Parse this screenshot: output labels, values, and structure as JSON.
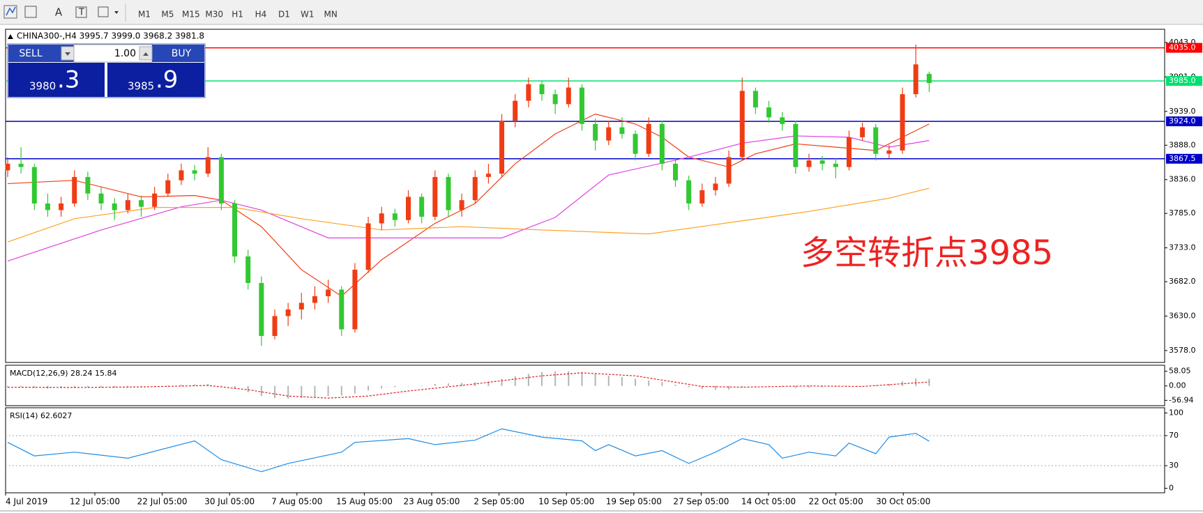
{
  "toolbar": {
    "tools": [
      "A",
      "T"
    ],
    "timeframes": [
      "M1",
      "M5",
      "M15",
      "M30",
      "H1",
      "H4",
      "D1",
      "W1",
      "MN"
    ]
  },
  "trade_panel": {
    "sell": "SELL",
    "lot": "1.00",
    "buy": "BUY",
    "bid_small": "3980",
    "bid_big": ".3",
    "ask_small": "3985",
    "ask_big": ".9"
  },
  "chart_data": [
    {
      "type": "candlestick",
      "title": "CHINA300-,H4 3995.7 3999.0 3968.2 3981.8",
      "up_color": "#f03c14",
      "down_color": "#32c832",
      "ylim": [
        3560,
        4063
      ],
      "yticks": [
        {
          "value": 4043,
          "label": "4043.0"
        },
        {
          "value": 3991,
          "label": "3991.0"
        },
        {
          "value": 3939,
          "label": "3939.0"
        },
        {
          "value": 3888,
          "label": "3888.0"
        },
        {
          "value": 3836,
          "label": "3836.0"
        },
        {
          "value": 3785,
          "label": "3785.0"
        },
        {
          "value": 3733,
          "label": "3733.0"
        },
        {
          "value": 3682,
          "label": "3682.0"
        },
        {
          "value": 3630,
          "label": "3630.0"
        },
        {
          "value": 3578,
          "label": "3578.0"
        }
      ],
      "levels": [
        {
          "value": 4035,
          "label": "4035.0",
          "color": "#ff0000"
        },
        {
          "value": 3985,
          "label": "3985.0",
          "color": "#00e070"
        },
        {
          "value": 3924,
          "label": "3924.0",
          "color": "#0000cc"
        },
        {
          "value": 3867.5,
          "label": "3867.5",
          "color": "#0000cc"
        }
      ],
      "open": [
        3850,
        3860,
        3855,
        3800,
        3790,
        3800,
        3840,
        3815,
        3800,
        3790,
        3805,
        3795,
        3815,
        3835,
        3850,
        3845,
        3870,
        3800,
        3720,
        3680,
        3600,
        3630,
        3640,
        3650,
        3660,
        3670,
        3610,
        3700,
        3770,
        3785,
        3775,
        3810,
        3780,
        3840,
        3790,
        3805,
        3840,
        3845,
        3925,
        3955,
        3980,
        3965,
        3950,
        3975,
        3920,
        3895,
        3915,
        3905,
        3875,
        3920,
        3860,
        3835,
        3800,
        3820,
        3830,
        3870,
        3970,
        3945,
        3930,
        3920,
        3855,
        3865,
        3860,
        3855,
        3900,
        3915,
        3875,
        3880,
        3965,
        3995.7
      ],
      "high": [
        3870,
        3885,
        3860,
        3815,
        3810,
        3850,
        3848,
        3825,
        3808,
        3815,
        3812,
        3825,
        3845,
        3860,
        3858,
        3885,
        3875,
        3805,
        3730,
        3690,
        3640,
        3650,
        3665,
        3675,
        3685,
        3675,
        3710,
        3780,
        3795,
        3792,
        3820,
        3815,
        3850,
        3845,
        3815,
        3850,
        3860,
        3935,
        3965,
        3990,
        3985,
        3972,
        3990,
        3980,
        3928,
        3925,
        3930,
        3910,
        3930,
        3925,
        3868,
        3842,
        3830,
        3840,
        3880,
        3990,
        3975,
        3955,
        3938,
        3925,
        3875,
        3872,
        3868,
        3910,
        3922,
        3920,
        3888,
        3975,
        4040,
        3999.0
      ],
      "low": [
        3840,
        3845,
        3790,
        3780,
        3780,
        3795,
        3805,
        3790,
        3775,
        3785,
        3780,
        3790,
        3810,
        3828,
        3835,
        3840,
        3790,
        3710,
        3670,
        3585,
        3595,
        3615,
        3625,
        3640,
        3650,
        3600,
        3605,
        3695,
        3760,
        3765,
        3770,
        3770,
        3775,
        3780,
        3780,
        3800,
        3830,
        3840,
        3915,
        3945,
        3955,
        3935,
        3945,
        3910,
        3880,
        3888,
        3898,
        3865,
        3870,
        3850,
        3825,
        3790,
        3795,
        3812,
        3825,
        3865,
        3935,
        3922,
        3910,
        3845,
        3848,
        3850,
        3838,
        3850,
        3895,
        3865,
        3868,
        3875,
        3960,
        3968.2
      ],
      "close": [
        3860,
        3855,
        3800,
        3790,
        3800,
        3840,
        3815,
        3800,
        3790,
        3805,
        3795,
        3815,
        3835,
        3850,
        3845,
        3870,
        3800,
        3720,
        3680,
        3600,
        3630,
        3640,
        3650,
        3660,
        3670,
        3610,
        3700,
        3770,
        3785,
        3775,
        3810,
        3780,
        3840,
        3790,
        3805,
        3840,
        3845,
        3925,
        3955,
        3980,
        3965,
        3950,
        3975,
        3920,
        3895,
        3915,
        3905,
        3875,
        3920,
        3860,
        3835,
        3800,
        3820,
        3830,
        3870,
        3970,
        3945,
        3930,
        3920,
        3855,
        3865,
        3860,
        3855,
        3900,
        3915,
        3875,
        3880,
        3965,
        4010,
        3981.8
      ],
      "series": [
        {
          "color": "#f03c14",
          "x": [
            0,
            5,
            10,
            14,
            16,
            19,
            22,
            25,
            28,
            32,
            35,
            38,
            41,
            44,
            47,
            49,
            51,
            54,
            56,
            59,
            62,
            65,
            68,
            69
          ],
          "values": [
            3830,
            3835,
            3810,
            3812,
            3805,
            3765,
            3700,
            3660,
            3715,
            3770,
            3800,
            3860,
            3905,
            3935,
            3920,
            3900,
            3870,
            3855,
            3875,
            3890,
            3885,
            3880,
            3910,
            3920
          ]
        },
        {
          "color": "#e040e0",
          "x": [
            0,
            7,
            13,
            16,
            19,
            24,
            32,
            37,
            41,
            45,
            51,
            55,
            59,
            63,
            66,
            69
          ],
          "values": [
            3713,
            3760,
            3795,
            3805,
            3790,
            3748,
            3748,
            3748,
            3779,
            3843,
            3870,
            3891,
            3902,
            3900,
            3885,
            3895
          ]
        },
        {
          "color": "#ffa020",
          "x": [
            0,
            5,
            11,
            17,
            22,
            28,
            34,
            40,
            48,
            54,
            60,
            66,
            69
          ],
          "values": [
            3742,
            3777,
            3794,
            3794,
            3777,
            3760,
            3765,
            3760,
            3754,
            3771,
            3788,
            3808,
            3823
          ]
        }
      ],
      "annotation": "多空转折点3985",
      "x_labels": [
        "4 Jul 2019",
        "12 Jul 05:00",
        "22 Jul 05:00",
        "30 Jul 05:00",
        "7 Aug 05:00",
        "15 Aug 05:00",
        "23 Aug 05:00",
        "2 Sep 05:00",
        "10 Sep 05:00",
        "19 Sep 05:00",
        "27 Sep 05:00",
        "14 Oct 05:00",
        "22 Oct 05:00",
        "30 Oct 05:00"
      ]
    },
    {
      "type": "macd",
      "title": "MACD(12,26,9) 28.24 15.84",
      "ylim": [
        -78,
        82
      ],
      "yticks": [
        58.05,
        {
          "value": 0,
          "label": "0.00"
        },
        -56.94
      ],
      "histogram": {
        "color": "#b4b4b4",
        "values": [
          -5,
          -4,
          -8,
          -10,
          -9,
          -6,
          -5,
          -6,
          -7,
          -6,
          -5,
          -2,
          2,
          5,
          6,
          8,
          2,
          -12,
          -25,
          -40,
          -48,
          -50,
          -48,
          -44,
          -40,
          -38,
          -30,
          -18,
          -10,
          -5,
          0,
          2,
          8,
          10,
          12,
          15,
          18,
          28,
          38,
          48,
          55,
          58,
          58,
          55,
          48,
          40,
          35,
          28,
          22,
          15,
          5,
          -5,
          -12,
          -15,
          -14,
          -5,
          -2,
          -1,
          -3,
          -8,
          -6,
          -5,
          -4,
          -2,
          0,
          2,
          8,
          18,
          30,
          28.24
        ]
      },
      "signal": {
        "color": "#e02020",
        "x": [
          0,
          5,
          10,
          15,
          18,
          21,
          24,
          27,
          30,
          35,
          40,
          43,
          47,
          52,
          55,
          60,
          64,
          69
        ],
        "values": [
          -5,
          -6,
          -4,
          2,
          -15,
          -40,
          -48,
          -40,
          -20,
          8,
          40,
          52,
          40,
          -2,
          -5,
          0,
          -2,
          15.84
        ]
      }
    },
    {
      "type": "rsi",
      "title": "RSI(14) 62.6027",
      "ylim": [
        -6,
        107
      ],
      "yticks": [
        100,
        70,
        30,
        0
      ],
      "levels": [
        70,
        30
      ],
      "series": [
        {
          "color": "#1e8ce6",
          "x": [
            0,
            2,
            5,
            9,
            14,
            16,
            19,
            21,
            25,
            26,
            30,
            32,
            35,
            37,
            40,
            43,
            44,
            45,
            47,
            49,
            51,
            53,
            55,
            57,
            58,
            60,
            62,
            63,
            65,
            66,
            68,
            69
          ],
          "values": [
            61,
            43,
            48,
            40,
            63,
            38,
            22,
            33,
            48,
            61,
            66,
            58,
            64,
            79,
            68,
            63,
            50,
            58,
            43,
            50,
            33,
            48,
            66,
            58,
            40,
            48,
            43,
            60,
            46,
            68,
            73,
            62.6027
          ]
        }
      ]
    }
  ]
}
